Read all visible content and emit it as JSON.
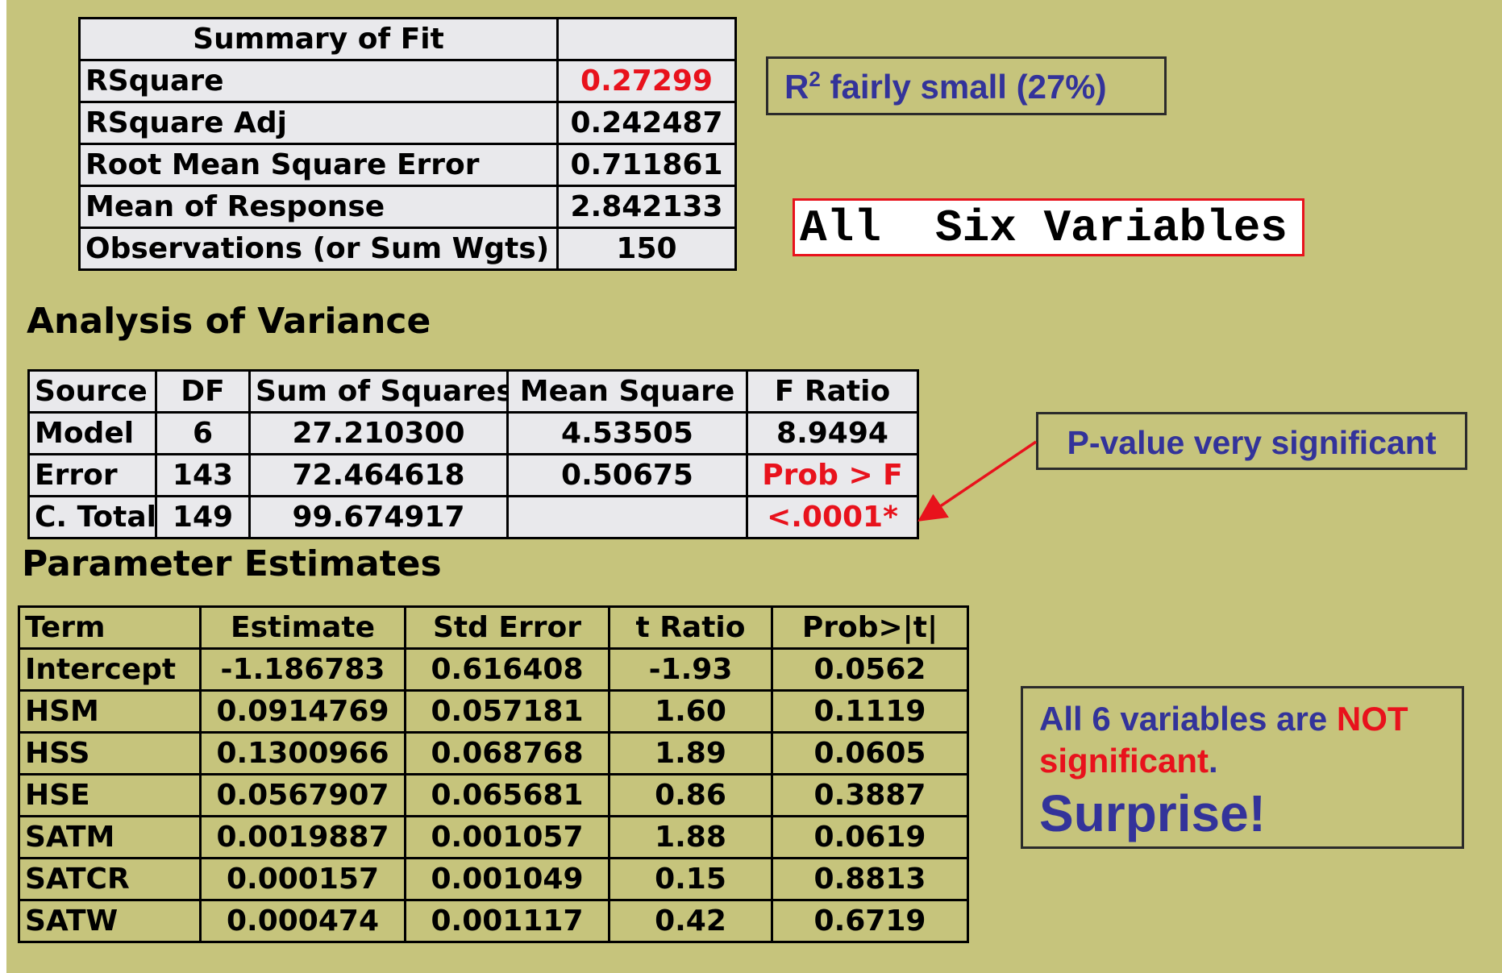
{
  "summary_of_fit": {
    "header": [
      "Summary of Fit",
      ""
    ],
    "rows": [
      {
        "label": "RSquare",
        "value": "0.27299"
      },
      {
        "label": "RSquare Adj",
        "value": "0.242487"
      },
      {
        "label": "Root Mean Square Error",
        "value": "0.711861"
      },
      {
        "label": "Mean of Response",
        "value": "2.842133"
      },
      {
        "label": "Observations (or Sum Wgts)",
        "value": "150"
      }
    ]
  },
  "anova": {
    "title": "Analysis of Variance",
    "header": [
      "Source",
      "DF",
      "Sum of Squares",
      "Mean Square",
      "F Ratio"
    ],
    "rows": [
      [
        "Model",
        "6",
        "27.210300",
        "4.53505",
        "8.9494"
      ],
      [
        "Error",
        "143",
        "72.464618",
        "0.50675",
        "Prob > F"
      ],
      [
        "C. Total",
        "149",
        "99.674917",
        "",
        "<.0001*"
      ]
    ]
  },
  "parameter_estimates": {
    "title": "Parameter Estimates",
    "header": [
      "Term",
      "Estimate",
      "Std Error",
      "t Ratio",
      "Prob>|t|"
    ],
    "rows": [
      [
        "Intercept",
        "-1.186783",
        "0.616408",
        "-1.93",
        "0.0562"
      ],
      [
        "HSM",
        "0.0914769",
        "0.057181",
        "1.60",
        "0.1119"
      ],
      [
        "HSS",
        "0.1300966",
        "0.068768",
        "1.89",
        "0.0605"
      ],
      [
        "HSE",
        "0.0567907",
        "0.065681",
        "0.86",
        "0.3887"
      ],
      [
        "SATM",
        "0.0019887",
        "0.001057",
        "1.88",
        "0.0619"
      ],
      [
        "SATCR",
        "0.000157",
        "0.001049",
        "0.15",
        "0.8813"
      ],
      [
        "SATW",
        "0.000474",
        "0.001117",
        "0.42",
        "0.6719"
      ]
    ]
  },
  "annotations": {
    "r2_note": {
      "prefix": "R",
      "sup": "2",
      "text": " fairly small (27%)"
    },
    "all_six": "All  Six Variables",
    "pvalue_note": "P-value very significant",
    "six_note": {
      "part1": "All 6 variables are ",
      "not": "NOT",
      "part2": "significant",
      "period": ".",
      "surprise": "Surprise!"
    }
  },
  "colors": {
    "background": "#c6c47c",
    "highlight_red": "#e8121c",
    "note_blue": "#33339a",
    "table_grey": "#e9e9ec"
  }
}
